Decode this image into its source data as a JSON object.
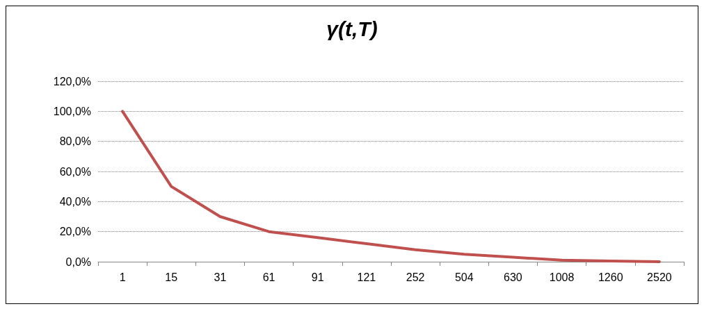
{
  "chart_data": {
    "type": "line",
    "title": "γ(t,T)",
    "categories": [
      "1",
      "15",
      "31",
      "61",
      "91",
      "121",
      "252",
      "504",
      "630",
      "1008",
      "1260",
      "2520"
    ],
    "series": [
      {
        "color": "#c0504d",
        "values": [
          100,
          50,
          30,
          20,
          16,
          12,
          8,
          5,
          3,
          1,
          0.5,
          0
        ]
      }
    ],
    "ylim": [
      0,
      120
    ],
    "yticks": [
      {
        "value": 0,
        "label": "0,0%"
      },
      {
        "value": 20,
        "label": "20,0%"
      },
      {
        "value": 40,
        "label": "40,0%"
      },
      {
        "value": 60,
        "label": "60,0%"
      },
      {
        "value": 80,
        "label": "80,0%"
      },
      {
        "value": 100,
        "label": "100,0%"
      },
      {
        "value": 120,
        "label": "120,0%"
      }
    ],
    "grid": "y",
    "marker": "none",
    "line_style": "solid"
  }
}
